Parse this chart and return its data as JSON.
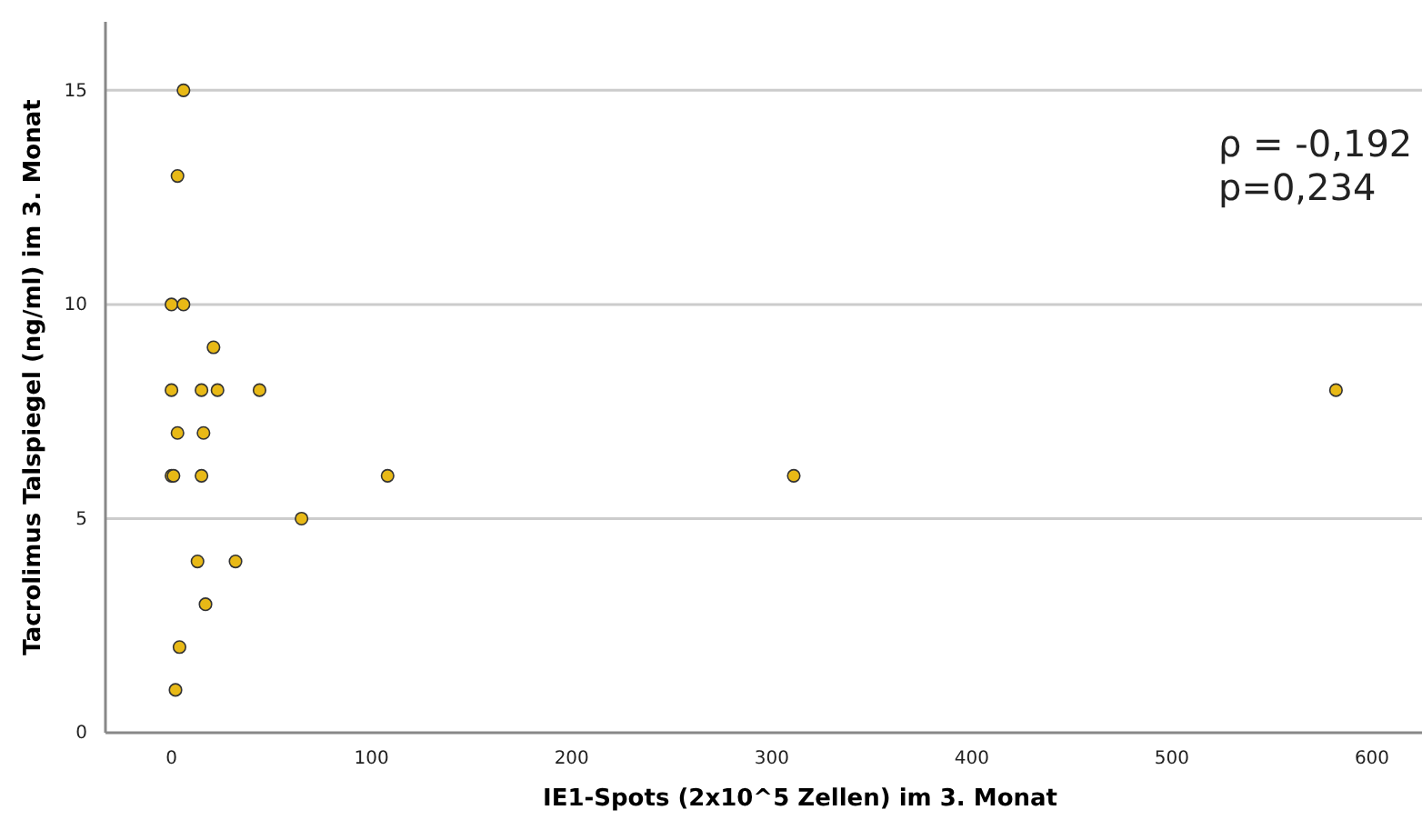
{
  "chart_data": {
    "type": "scatter",
    "xlabel": "IE1-Spots (2x10^5 Zellen) im 3. Monat",
    "ylabel": "Tacrolimus Talspiegel (ng/ml) im 3. Monat",
    "x": [
      6,
      3,
      0,
      6,
      21,
      0,
      15,
      23,
      44,
      582,
      3,
      16,
      0,
      1,
      15,
      108,
      311,
      65,
      13,
      32,
      17,
      4,
      2
    ],
    "series": [
      {
        "color": "#e8b916",
        "values": [
          15,
          13,
          10,
          10,
          9,
          8,
          8,
          8,
          8,
          8,
          7,
          7,
          6,
          6,
          6,
          6,
          6,
          5,
          4,
          4,
          3,
          2,
          1
        ]
      }
    ],
    "xlim": [
      -33,
      625
    ],
    "ylim": [
      0,
      16.6
    ],
    "xticks": [
      0,
      100,
      200,
      300,
      400,
      500,
      600
    ],
    "yticks": [
      0,
      5,
      10,
      15
    ],
    "grid": "y",
    "marker": "circle",
    "annotations": [
      "ρ = -0,192",
      "p=0,234"
    ]
  }
}
